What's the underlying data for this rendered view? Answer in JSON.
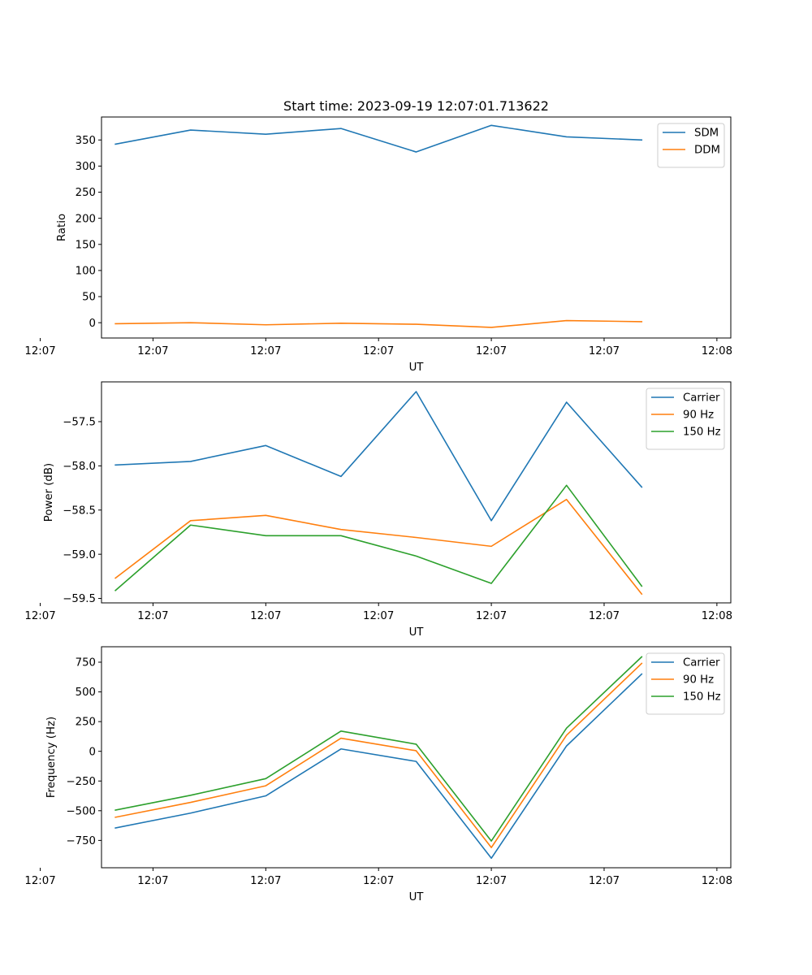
{
  "colors": {
    "blue": "#1f77b4",
    "orange": "#ff7f0e",
    "green": "#2ca02c"
  },
  "chart_data": [
    {
      "type": "line",
      "title": "Start time: 2023-09-19 12:07:01.713622",
      "xlabel": "UT",
      "ylabel": "Ratio",
      "x": [
        1,
        2,
        3,
        4,
        5,
        6,
        7,
        8
      ],
      "xlim": [
        0.815,
        9.185
      ],
      "x_tick_values": [
        0,
        1.5,
        3,
        4.5,
        6,
        7.5,
        9
      ],
      "x_tick_labels": [
        "12:07",
        "12:07",
        "12:07",
        "12:07",
        "12:07",
        "12:07",
        "12:08"
      ],
      "ylim": [
        -29.3,
        394.0
      ],
      "y_ticks": [
        0,
        50,
        100,
        150,
        200,
        250,
        300,
        350
      ],
      "y_tick_labels": [
        "0",
        "50",
        "100",
        "150",
        "200",
        "250",
        "300",
        "350"
      ],
      "legend_position": "top-right",
      "series": [
        {
          "name": "SDM",
          "color": "#1f77b4",
          "values": [
            342,
            369,
            361,
            372,
            327,
            378,
            356,
            350
          ]
        },
        {
          "name": "DDM",
          "color": "#ff7f0e",
          "values": [
            -2,
            0,
            -4,
            -1,
            -3,
            -9,
            4,
            2
          ]
        }
      ]
    },
    {
      "type": "line",
      "title": "",
      "xlabel": "UT",
      "ylabel": "Power (dB)",
      "x": [
        1,
        2,
        3,
        4,
        5,
        6,
        7,
        8
      ],
      "xlim": [
        0.815,
        9.185
      ],
      "x_tick_values": [
        0,
        1.5,
        3,
        4.5,
        6,
        7.5,
        9
      ],
      "x_tick_labels": [
        "12:07",
        "12:07",
        "12:07",
        "12:07",
        "12:07",
        "12:07",
        "12:08"
      ],
      "ylim": [
        -59.55,
        -57.05
      ],
      "y_ticks": [
        -59.5,
        -59.0,
        -58.5,
        -58.0,
        -57.5
      ],
      "y_tick_labels": [
        "−59.5",
        "−59.0",
        "−58.5",
        "−58.0",
        "−57.5"
      ],
      "legend_position": "top-right",
      "series": [
        {
          "name": "Carrier",
          "color": "#1f77b4",
          "values": [
            -57.99,
            -57.95,
            -57.77,
            -58.12,
            -57.16,
            -58.62,
            -57.28,
            -58.24
          ]
        },
        {
          "name": "90 Hz",
          "color": "#ff7f0e",
          "values": [
            -59.27,
            -58.62,
            -58.56,
            -58.72,
            -58.81,
            -58.91,
            -58.38,
            -59.45
          ]
        },
        {
          "name": "150 Hz",
          "color": "#2ca02c",
          "values": [
            -59.41,
            -58.67,
            -58.79,
            -58.79,
            -59.02,
            -59.33,
            -58.22,
            -59.36
          ]
        }
      ]
    },
    {
      "type": "line",
      "title": "",
      "xlabel": "UT",
      "ylabel": "Frequency (Hz)",
      "x": [
        1,
        2,
        3,
        4,
        5,
        6,
        7,
        8
      ],
      "xlim": [
        0.815,
        9.185
      ],
      "x_tick_values": [
        0,
        1.5,
        3,
        4.5,
        6,
        7.5,
        9
      ],
      "x_tick_labels": [
        "12:07",
        "12:07",
        "12:07",
        "12:07",
        "12:07",
        "12:07",
        "12:08"
      ],
      "ylim": [
        -980,
        880
      ],
      "y_ticks": [
        -750,
        -500,
        -250,
        0,
        250,
        500,
        750
      ],
      "y_tick_labels": [
        "−750",
        "−500",
        "−250",
        "0",
        "250",
        "500",
        "750"
      ],
      "legend_position": "top-right",
      "series": [
        {
          "name": "Carrier",
          "color": "#1f77b4",
          "values": [
            -645,
            -520,
            -375,
            20,
            -85,
            -900,
            45,
            650
          ]
        },
        {
          "name": "90 Hz",
          "color": "#ff7f0e",
          "values": [
            -555,
            -430,
            -290,
            110,
            5,
            -810,
            135,
            740
          ]
        },
        {
          "name": "150 Hz",
          "color": "#2ca02c",
          "values": [
            -495,
            -370,
            -230,
            170,
            60,
            -755,
            195,
            795
          ]
        }
      ]
    }
  ]
}
